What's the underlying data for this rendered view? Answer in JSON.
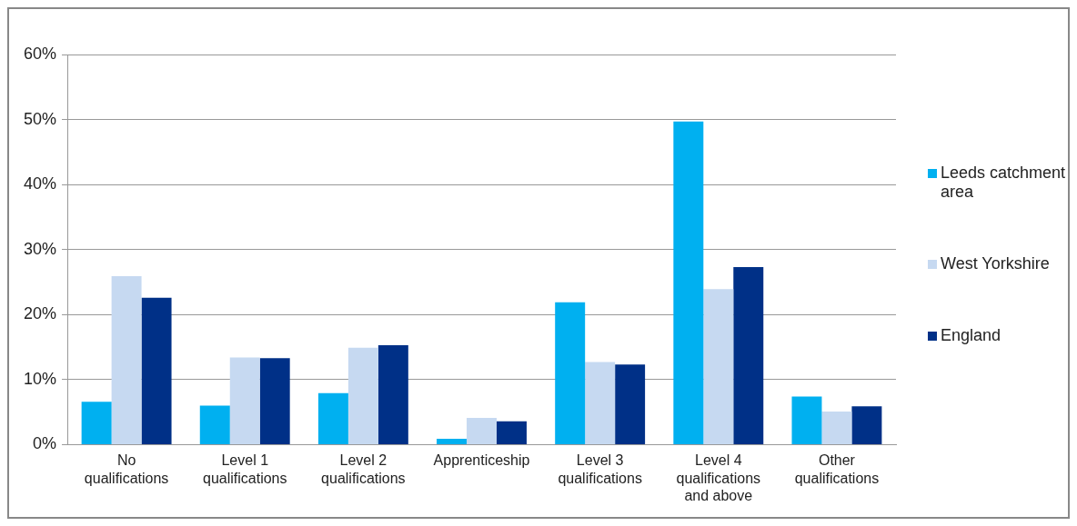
{
  "chart_data": {
    "type": "bar",
    "categories": [
      "No qualifications",
      "Level 1 qualifications",
      "Level 2 qualifications",
      "Apprenticeship",
      "Level 3 qualifications",
      "Level 4 qualifications and above",
      "Other qualifications"
    ],
    "series": [
      {
        "name": "Leeds catchment area",
        "color": "#00b0f0",
        "values": [
          6.6,
          6.0,
          7.9,
          0.9,
          21.9,
          49.7,
          7.4
        ]
      },
      {
        "name": "West Yorkshire",
        "color": "#c6d9f1",
        "values": [
          25.9,
          13.4,
          14.9,
          4.1,
          12.7,
          23.9,
          5.1
        ]
      },
      {
        "name": "England",
        "color": "#003087",
        "values": [
          22.6,
          13.3,
          15.3,
          3.6,
          12.3,
          27.3,
          5.9
        ]
      }
    ],
    "ylim": [
      0,
      60
    ],
    "yticks": [
      {
        "value": 0,
        "label": "0%"
      },
      {
        "value": 10,
        "label": "10%"
      },
      {
        "value": 20,
        "label": "20%"
      },
      {
        "value": 30,
        "label": "30%"
      },
      {
        "value": 40,
        "label": "40%"
      },
      {
        "value": 50,
        "label": "50%"
      },
      {
        "value": 60,
        "label": "60%"
      }
    ],
    "grid": "y",
    "legend": "right"
  }
}
